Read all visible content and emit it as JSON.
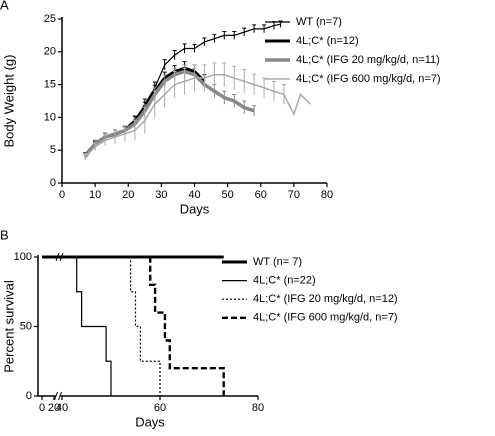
{
  "chart_data": [
    {
      "type": "line",
      "panel": "A",
      "xlabel": "Days",
      "ylabel": "Body Weight (g)",
      "xlim": [
        0,
        80
      ],
      "xticks": [
        0,
        10,
        20,
        30,
        40,
        50,
        60,
        70,
        80
      ],
      "ylim": [
        0,
        25
      ],
      "yticks": [
        0,
        5,
        10,
        15,
        20,
        25
      ],
      "series": [
        {
          "name": "WT (n=7)",
          "color": "#000000",
          "x": [
            7,
            10,
            13,
            16,
            19,
            22,
            25,
            28,
            31,
            34,
            37,
            40,
            43,
            46,
            49,
            52,
            55,
            58,
            61,
            64,
            66
          ],
          "values": [
            4.2,
            5.8,
            7,
            7.4,
            8,
            9.5,
            12,
            14.5,
            18,
            19.5,
            20.5,
            20.5,
            21.5,
            22,
            22.5,
            22.5,
            23,
            23.5,
            23.5,
            24,
            24.2
          ],
          "errors": [
            0.4,
            0.5,
            0.6,
            0.6,
            0.6,
            0.7,
            0.8,
            0.9,
            0.8,
            0.7,
            0.7,
            0.6,
            0.6,
            0.6,
            0.6,
            0.6,
            0.6,
            0.6,
            0.6,
            0.6,
            0.5
          ]
        },
        {
          "name": "4L;C* (n=12)",
          "color": "#000000",
          "x": [
            7,
            10,
            13,
            16,
            19,
            22,
            25,
            28,
            31,
            34,
            37,
            40,
            43
          ],
          "values": [
            4.2,
            6,
            7,
            7.4,
            8,
            9.5,
            11.5,
            14,
            16,
            17,
            17.5,
            17,
            15.5
          ],
          "errors": [
            0.4,
            0.5,
            0.6,
            0.6,
            0.6,
            0.7,
            0.8,
            0.9,
            0.9,
            0.9,
            1,
            1,
            1
          ]
        },
        {
          "name": "4L;C* (IFG 20 mg/kg/d, n=11)",
          "color": "#888888",
          "x": [
            7,
            10,
            13,
            16,
            19,
            22,
            25,
            28,
            31,
            34,
            37,
            40,
            43,
            46,
            49,
            52,
            55,
            58
          ],
          "values": [
            4,
            6,
            7,
            7.5,
            8,
            9,
            11,
            13.5,
            15.5,
            16.5,
            17,
            16.5,
            15,
            14,
            13,
            12.5,
            11.5,
            11
          ],
          "errors": [
            0.4,
            0.5,
            0.6,
            0.6,
            0.7,
            0.8,
            0.9,
            1,
            1,
            1,
            1,
            1,
            1,
            1,
            1,
            1,
            1,
            0.8
          ]
        },
        {
          "name": "4L;C* (IFG 600 mg/kg/d, n=7)",
          "color": "#aaaaaa",
          "x": [
            7,
            10,
            13,
            16,
            19,
            22,
            25,
            28,
            31,
            34,
            37,
            40,
            43,
            46,
            49,
            52,
            55,
            58,
            61,
            64,
            67,
            70,
            72,
            75
          ],
          "values": [
            4,
            5.5,
            6.5,
            7,
            7.5,
            8,
            9.5,
            12,
            13.5,
            15,
            15.5,
            16,
            16,
            16.5,
            16.5,
            16,
            15.5,
            15,
            14.5,
            14,
            13.5,
            10.5,
            13.5,
            12
          ],
          "errors": [
            0.5,
            0.6,
            0.8,
            1,
            1.2,
            1.5,
            2,
            2,
            2,
            2,
            2,
            2,
            2,
            1.8,
            1.8,
            1.8,
            1.8,
            1.6,
            1.5,
            1.5,
            1.5,
            null,
            null,
            null
          ]
        }
      ]
    },
    {
      "type": "step",
      "panel": "B",
      "xlabel": "Days",
      "ylabel": "Percent survival",
      "xlim": [
        0,
        80
      ],
      "xticks": [
        0,
        20,
        40,
        60,
        80
      ],
      "xbreak": [
        20,
        40
      ],
      "ylim": [
        0,
        100
      ],
      "yticks": [
        0,
        50,
        100
      ],
      "series": [
        {
          "name": "WT (n= 7)",
          "color": "#000000",
          "linestyle": "solid",
          "x": [
            0,
            73
          ],
          "values": [
            100,
            100
          ]
        },
        {
          "name": "4L;C* (n=22)",
          "color": "#000000",
          "linestyle": "solid",
          "x": [
            0,
            43,
            44,
            49,
            50
          ],
          "values": [
            100,
            75,
            50,
            25,
            0
          ]
        },
        {
          "name": "4L;C* (IFG 20 mg/kg/d, n=12)",
          "color": "#000000",
          "linestyle": "dotted",
          "x": [
            0,
            54,
            55,
            56,
            60
          ],
          "values": [
            100,
            75,
            50,
            25,
            0
          ]
        },
        {
          "name": "4L;C* (IFG 600 mg/kg/d, n=7)",
          "color": "#000000",
          "linestyle": "dashed",
          "x": [
            0,
            58,
            59,
            61,
            62,
            73
          ],
          "values": [
            100,
            80,
            60,
            40,
            20,
            0
          ]
        }
      ]
    }
  ]
}
